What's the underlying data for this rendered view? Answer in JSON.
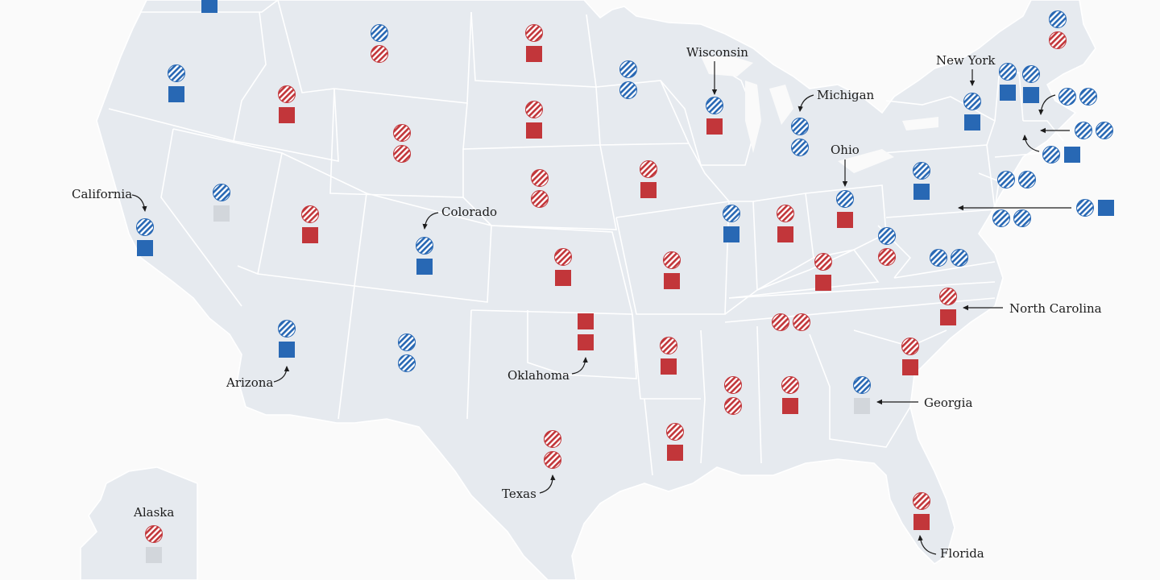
{
  "colors": {
    "dem": "#2868b4",
    "dem_stripe": "#2868b4",
    "rep": "#c2363a",
    "rep_stripe": "#c2363a",
    "vacant": "#d2d6db",
    "land": "#e6eaef",
    "border": "#ffffff",
    "background": "#fafafa",
    "arrow": "#1c1c1c"
  },
  "legend_key": {
    "circle": "hatched circle marker",
    "square": "solid square marker"
  },
  "labels": {
    "california": "California",
    "colorado": "Colorado",
    "wisconsin": "Wisconsin",
    "michigan": "Michigan",
    "new_york": "New York",
    "ohio": "Ohio",
    "north_carolina": "North Carolina",
    "georgia": "Georgia",
    "arizona": "Arizona",
    "oklahoma": "Oklahoma",
    "texas": "Texas",
    "florida": "Florida",
    "alaska": "Alaska"
  },
  "states": [
    {
      "id": "washington",
      "markers": [
        "square-dem"
      ]
    },
    {
      "id": "oregon",
      "markers": [
        "circle-dem",
        "square-dem"
      ]
    },
    {
      "id": "idaho",
      "markers": [
        "circle-rep",
        "square-rep"
      ]
    },
    {
      "id": "montana",
      "markers": [
        "circle-dem",
        "circle-rep"
      ]
    },
    {
      "id": "wyoming",
      "markers": [
        "circle-rep",
        "circle-rep"
      ]
    },
    {
      "id": "north-dakota",
      "markers": [
        "circle-rep",
        "square-rep"
      ]
    },
    {
      "id": "south-dakota",
      "markers": [
        "circle-rep",
        "square-rep"
      ]
    },
    {
      "id": "minnesota",
      "markers": [
        "circle-dem",
        "circle-dem"
      ]
    },
    {
      "id": "wisconsin",
      "markers": [
        "circle-dem",
        "square-rep"
      ]
    },
    {
      "id": "michigan",
      "markers": [
        "circle-dem",
        "circle-dem"
      ]
    },
    {
      "id": "california",
      "markers": [
        "circle-dem",
        "square-dem"
      ]
    },
    {
      "id": "nevada",
      "markers": [
        "circle-dem",
        "square-vacant"
      ]
    },
    {
      "id": "utah",
      "markers": [
        "circle-rep",
        "square-rep"
      ]
    },
    {
      "id": "colorado",
      "markers": [
        "circle-dem",
        "square-dem"
      ]
    },
    {
      "id": "nebraska",
      "markers": [
        "circle-rep",
        "circle-rep"
      ]
    },
    {
      "id": "iowa",
      "markers": [
        "circle-rep",
        "square-rep"
      ]
    },
    {
      "id": "kansas",
      "markers": [
        "circle-rep",
        "square-rep"
      ]
    },
    {
      "id": "missouri",
      "markers": [
        "circle-rep",
        "square-rep"
      ]
    },
    {
      "id": "illinois",
      "markers": [
        "circle-dem",
        "square-dem"
      ]
    },
    {
      "id": "indiana",
      "markers": [
        "circle-rep",
        "square-rep"
      ]
    },
    {
      "id": "ohio",
      "markers": [
        "circle-dem",
        "square-rep"
      ]
    },
    {
      "id": "kentucky",
      "markers": [
        "circle-rep",
        "square-rep"
      ]
    },
    {
      "id": "west-virginia",
      "markers": [
        "circle-dem",
        "circle-rep"
      ]
    },
    {
      "id": "virginia",
      "markers": [
        "circle-dem",
        "circle-dem"
      ]
    },
    {
      "id": "pennsylvania",
      "markers": [
        "circle-dem",
        "square-dem"
      ]
    },
    {
      "id": "new-york",
      "markers": [
        "circle-dem",
        "square-dem"
      ]
    },
    {
      "id": "vermont",
      "markers": [
        "circle-dem",
        "square-dem"
      ]
    },
    {
      "id": "new-hampshire",
      "markers": [
        "circle-dem",
        "square-dem"
      ]
    },
    {
      "id": "maine",
      "markers": [
        "circle-dem",
        "circle-rep"
      ]
    },
    {
      "id": "massachusetts",
      "markers": [
        "circle-dem",
        "circle-dem"
      ]
    },
    {
      "id": "rhode-island",
      "markers": [
        "circle-dem",
        "circle-dem"
      ]
    },
    {
      "id": "connecticut",
      "markers": [
        "circle-dem",
        "square-dem"
      ]
    },
    {
      "id": "new-jersey",
      "markers": [
        "circle-dem",
        "circle-dem"
      ]
    },
    {
      "id": "delaware",
      "markers": [
        "circle-dem",
        "square-dem"
      ]
    },
    {
      "id": "maryland",
      "markers": [
        "circle-dem",
        "circle-dem"
      ]
    },
    {
      "id": "arizona",
      "markers": [
        "circle-dem",
        "square-dem"
      ]
    },
    {
      "id": "new-mexico",
      "markers": [
        "circle-dem",
        "circle-dem"
      ]
    },
    {
      "id": "oklahoma",
      "markers": [
        "square-rep",
        "square-rep"
      ]
    },
    {
      "id": "arkansas",
      "markers": [
        "circle-rep",
        "square-rep"
      ]
    },
    {
      "id": "tennessee",
      "markers": [
        "circle-rep",
        "circle-rep"
      ]
    },
    {
      "id": "north-carolina",
      "markers": [
        "circle-rep",
        "square-rep"
      ]
    },
    {
      "id": "south-carolina",
      "markers": [
        "circle-rep",
        "square-rep"
      ]
    },
    {
      "id": "georgia",
      "markers": [
        "circle-dem",
        "square-vacant"
      ]
    },
    {
      "id": "alabama",
      "markers": [
        "circle-rep",
        "square-rep"
      ]
    },
    {
      "id": "mississippi",
      "markers": [
        "circle-rep",
        "circle-rep"
      ]
    },
    {
      "id": "louisiana",
      "markers": [
        "circle-rep",
        "square-rep"
      ]
    },
    {
      "id": "texas",
      "markers": [
        "circle-rep",
        "circle-rep"
      ]
    },
    {
      "id": "florida",
      "markers": [
        "circle-rep",
        "square-rep"
      ]
    },
    {
      "id": "alaska",
      "markers": [
        "circle-rep",
        "square-vacant"
      ]
    }
  ]
}
